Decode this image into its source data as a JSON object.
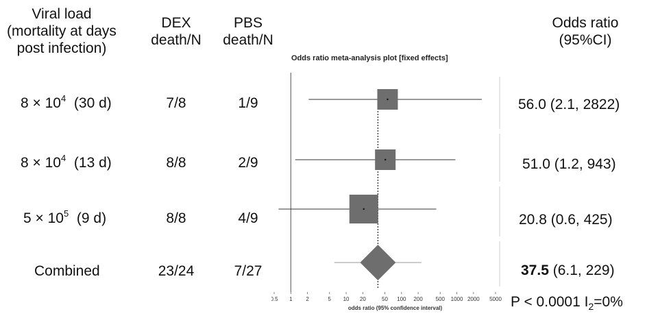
{
  "headers": {
    "viral_load": [
      "Viral load",
      "(mortality at days",
      "post infection)"
    ],
    "dex": [
      "DEX",
      "death/N"
    ],
    "pbs": [
      "PBS",
      "death/N"
    ],
    "odds_ratio": [
      "Odds ratio",
      "(95%CI)"
    ]
  },
  "rows": [
    {
      "mantissa": "8 × 10",
      "exp": "4",
      "days": "(30 d)",
      "dex": "7/8",
      "pbs": "1/9",
      "or_main": "56.0",
      "or_ci": "(2.1, 2822)"
    },
    {
      "mantissa": "8 × 10",
      "exp": "4",
      "days": "(13 d)",
      "dex": "8/8",
      "pbs": "2/9",
      "or_main": "51.0",
      "or_ci": "(1.2, 943)"
    },
    {
      "mantissa": "5 × 10",
      "exp": "5",
      "days": "(9 d)",
      "dex": "8/8",
      "pbs": "4/9",
      "or_main": "20.8",
      "or_ci": "(0.6, 425)"
    },
    {
      "label": "Combined",
      "dex": "23/24",
      "pbs": "7/27",
      "or_main": "37.5",
      "or_ci": "(6.1, 229)"
    }
  ],
  "stats": {
    "p_text": "P < 0.0001 I",
    "i_sub": "2",
    "i_val": "=0%"
  },
  "chart_data": {
    "type": "forest",
    "title": "Odds ratio meta-analysis plot [fixed effects]",
    "xlabel": "odds ratio (95% confidence interval)",
    "xscale": "log",
    "xticks": [
      0.5,
      1,
      2,
      5,
      10,
      20,
      50,
      100,
      200,
      500,
      1000,
      2000,
      5000
    ],
    "xtick_labels": [
      "0.5",
      "1",
      "2",
      "5",
      "10",
      "20",
      "50",
      "100",
      "200",
      "500",
      "1000",
      "2000",
      "5000"
    ],
    "studies": [
      {
        "or": 56.0,
        "lo": 2.1,
        "hi": 2822,
        "weight": 1.0
      },
      {
        "or": 51.0,
        "lo": 1.2,
        "hi": 943,
        "weight": 1.0
      },
      {
        "or": 20.8,
        "lo": 0.6,
        "hi": 425,
        "weight": 1.5
      }
    ],
    "pooled": {
      "or": 37.5,
      "lo": 6.1,
      "hi": 229
    },
    "reference_line": 1,
    "pooled_line": 37.5,
    "colors": {
      "box": "#6e6e6e",
      "line": "#333333",
      "diamond": "#6e6e6e"
    }
  }
}
